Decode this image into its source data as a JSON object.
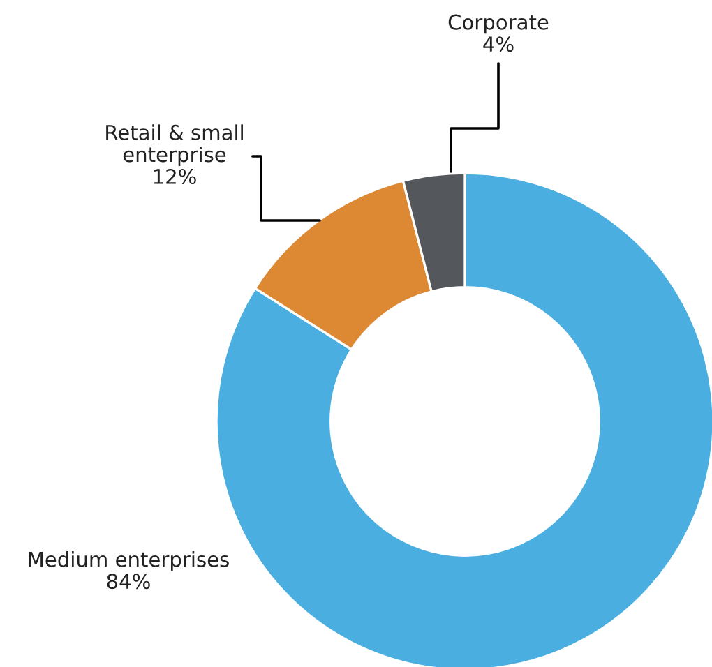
{
  "chart_data": {
    "type": "donut",
    "categories": [
      "Medium enterprises",
      "Retail & small\nenterprise",
      "Corporate"
    ],
    "values": [
      84,
      12,
      4
    ],
    "value_labels": [
      "84%",
      "12%",
      "4%"
    ],
    "colors": [
      "#4aafe0",
      "#dd8833",
      "#54575c"
    ],
    "legend": false
  }
}
